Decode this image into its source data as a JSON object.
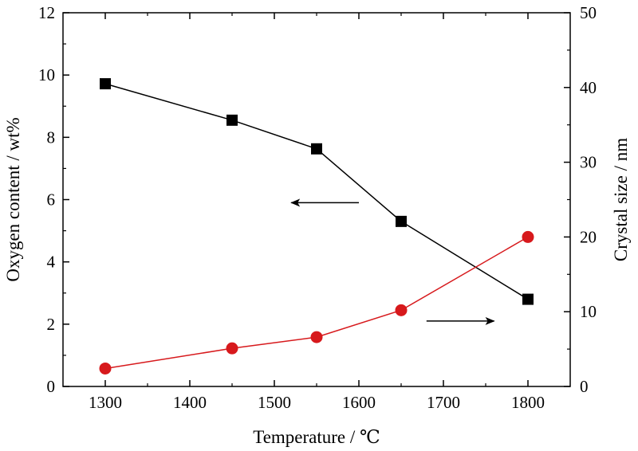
{
  "chart_data": {
    "type": "line",
    "x": [
      1300,
      1450,
      1550,
      1650,
      1800
    ],
    "xlabel": "Temperature / ℃",
    "ylabel": "Oxygen content / wt%",
    "y2label": "Crystal size / nm",
    "xlim": [
      1250,
      1850
    ],
    "ylim": [
      0,
      12
    ],
    "y2lim": [
      0,
      50
    ],
    "xticks": [
      1300,
      1400,
      1500,
      1600,
      1700,
      1800
    ],
    "yticks": [
      0,
      2,
      4,
      6,
      8,
      10,
      12
    ],
    "y2ticks": [
      0,
      10,
      20,
      30,
      40,
      50
    ],
    "grid": false,
    "series": [
      {
        "axis": "left",
        "marker": "square",
        "color": "#000000",
        "values": [
          9.72,
          8.55,
          7.63,
          5.3,
          2.8
        ]
      },
      {
        "axis": "right",
        "marker": "circle",
        "color": "#d7191c",
        "values": [
          2.4,
          5.1,
          6.6,
          10.2,
          20.0
        ]
      }
    ],
    "annotations": [
      {
        "type": "arrow",
        "direction": "left",
        "points_to_axis": "left",
        "y": 5.9,
        "x_from": 1600,
        "x_to": 1520
      },
      {
        "type": "arrow",
        "direction": "right",
        "points_to_axis": "right",
        "y": 2.1,
        "x_from": 1680,
        "x_to": 1760
      }
    ]
  }
}
